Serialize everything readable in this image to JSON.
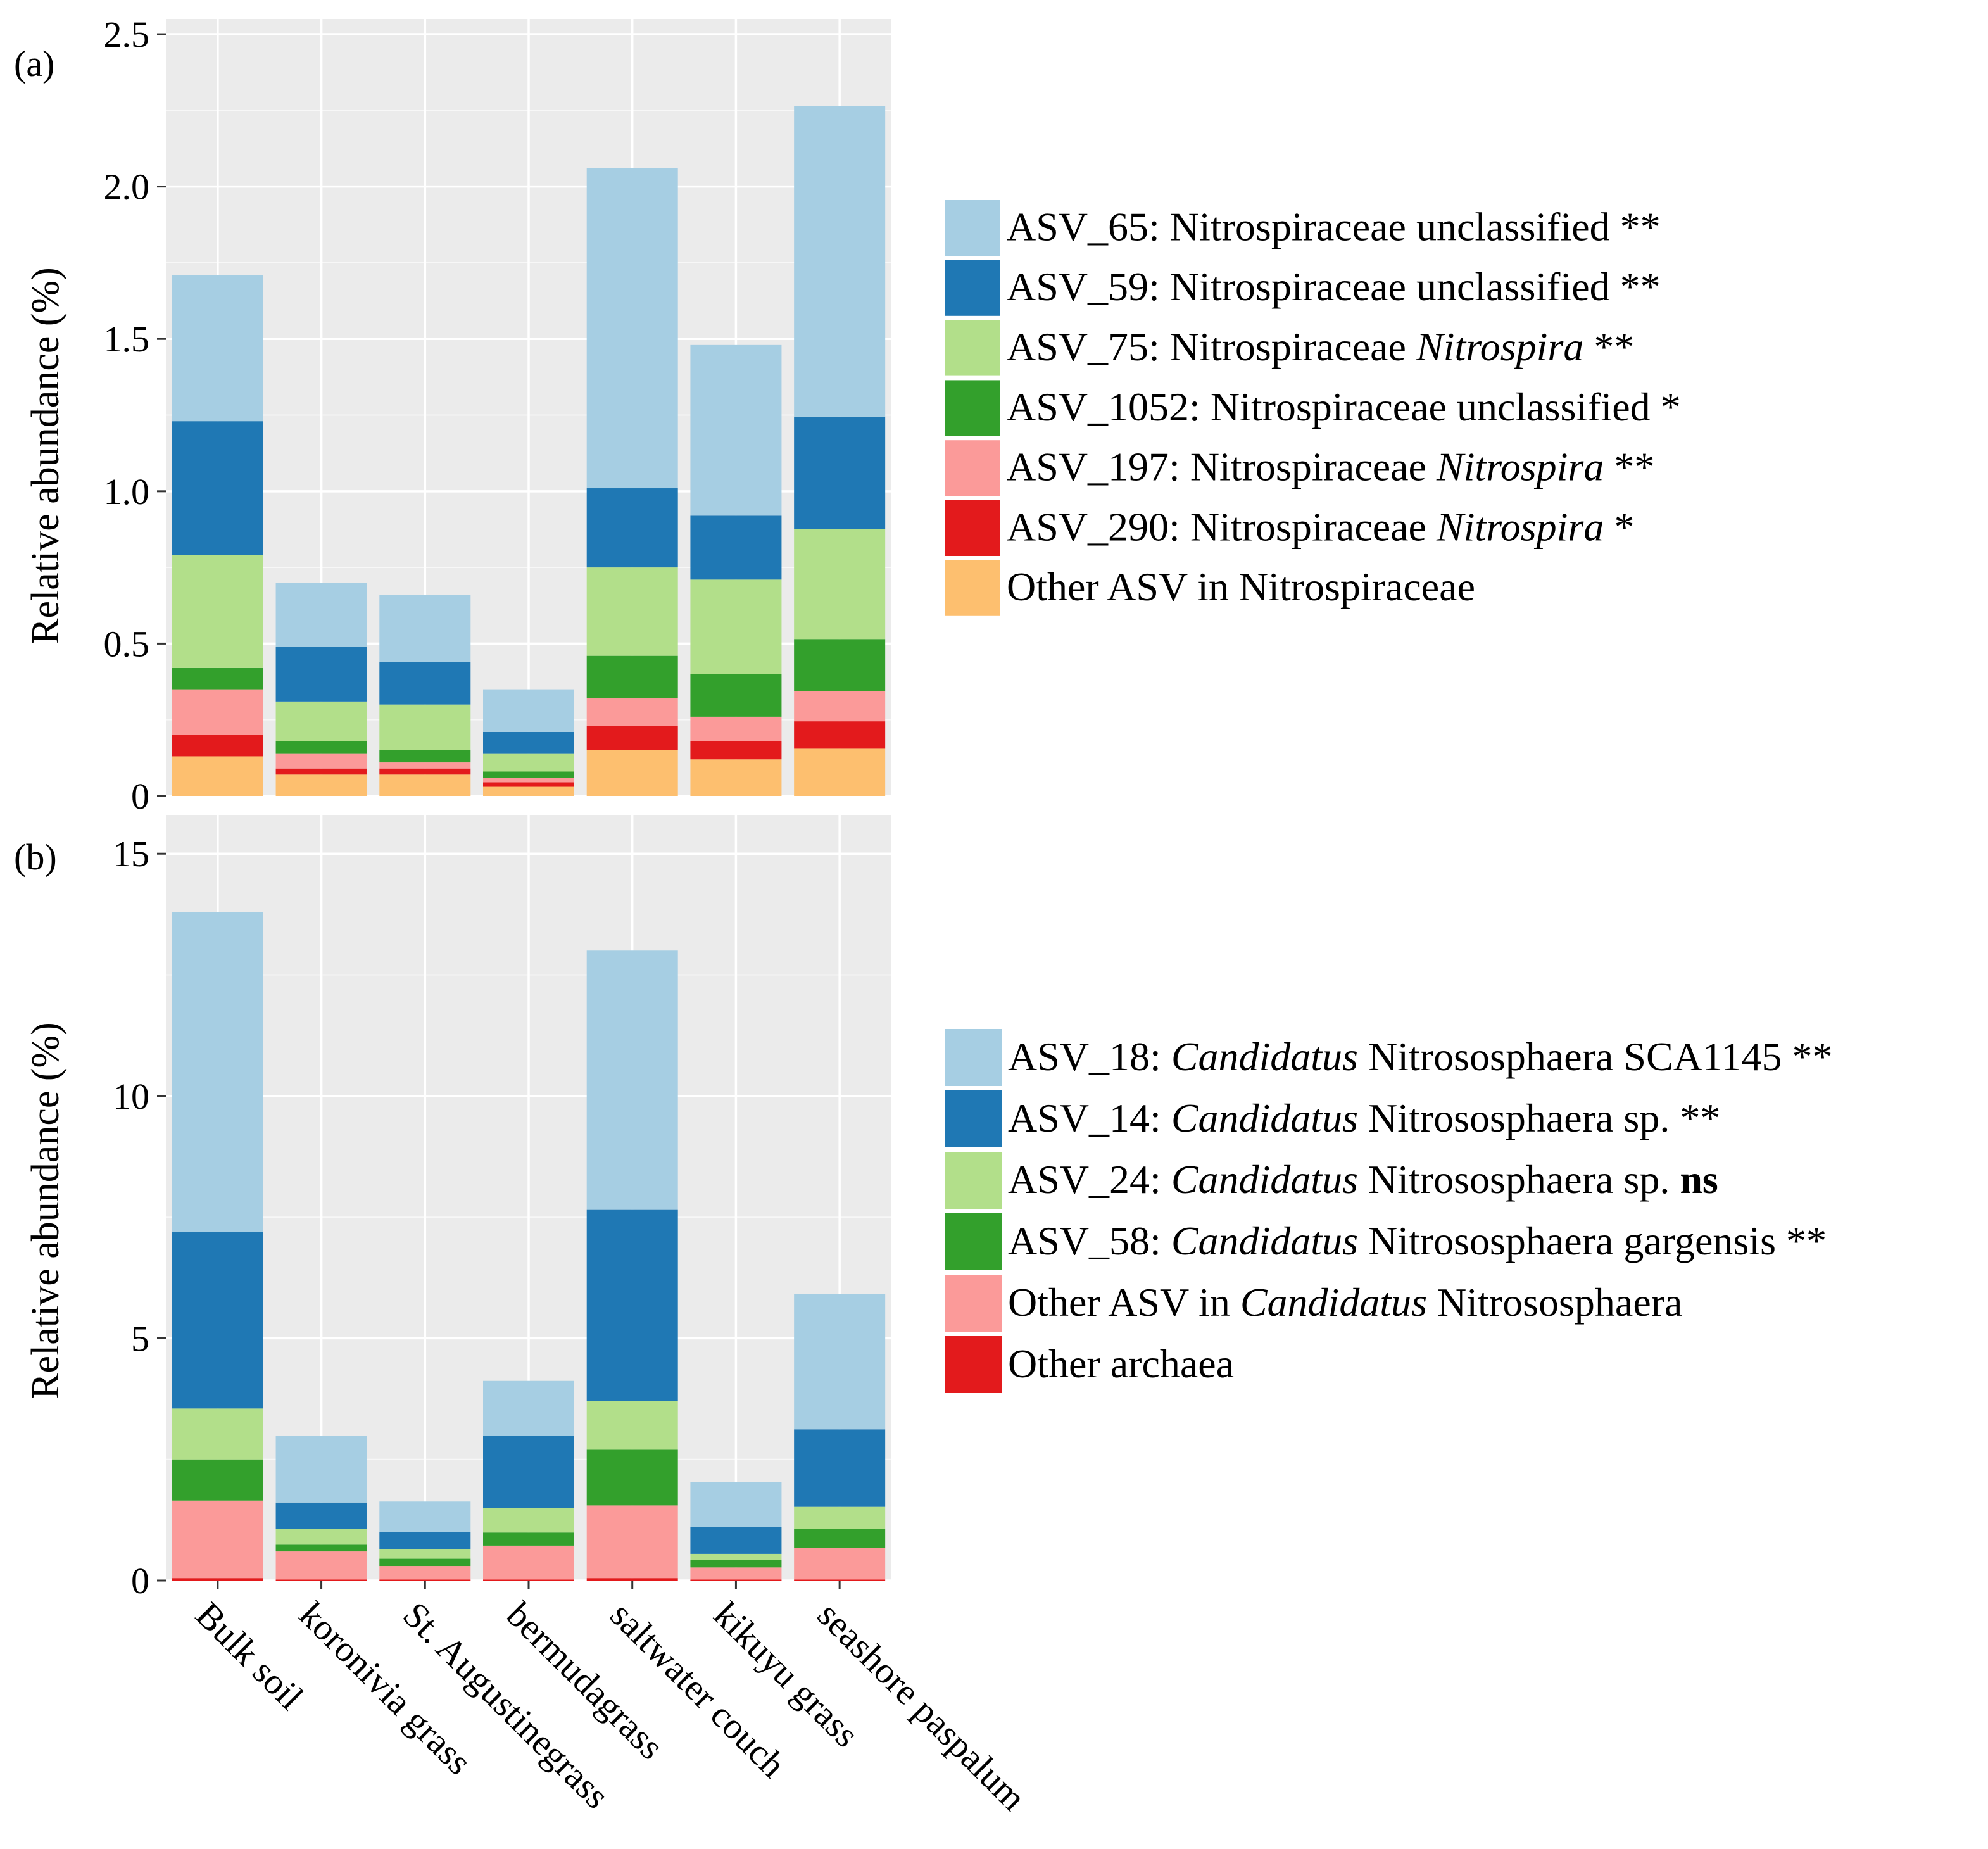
{
  "chart_data": [
    {
      "panel": "(a)",
      "type": "bar",
      "stacked": true,
      "ylabel": "Relative abundance (%)",
      "ylim": [
        0,
        2.55
      ],
      "yticks": [
        "0",
        "0.5",
        "1.0",
        "1.5",
        "2.0",
        "2.5"
      ],
      "ytick_values": [
        0,
        0.5,
        1.0,
        1.5,
        2.0,
        2.5
      ],
      "grid": true,
      "categories": [
        "Bulk soil",
        "koronivia grass",
        "St. Augustinegrass",
        "bermudagrass",
        "saltwater couch",
        "kikuyu grass",
        "seashore paspalum"
      ],
      "legend_position": "right",
      "series": [
        {
          "name": "Other ASV in Nitrospiraceae",
          "color": "#fdbf6f",
          "values": [
            0.13,
            0.07,
            0.07,
            0.03,
            0.15,
            0.12,
            0.155
          ]
        },
        {
          "name": "ASV_290: Nitrospiraceae Nitrospira *",
          "color": "#e31a1c",
          "values": [
            0.07,
            0.02,
            0.02,
            0.015,
            0.08,
            0.06,
            0.09
          ]
        },
        {
          "name": "ASV_197: Nitrospiraceae Nitrospira **",
          "color": "#fb9a99",
          "values": [
            0.15,
            0.05,
            0.02,
            0.015,
            0.09,
            0.08,
            0.1
          ]
        },
        {
          "name": "ASV_1052: Nitrospiraceae unclassified *",
          "color": "#33a02c",
          "values": [
            0.07,
            0.04,
            0.04,
            0.02,
            0.14,
            0.14,
            0.17
          ]
        },
        {
          "name": "ASV_75: Nitrospiraceae Nitrospira **",
          "color": "#b2df8a",
          "values": [
            0.37,
            0.13,
            0.15,
            0.06,
            0.29,
            0.31,
            0.36
          ]
        },
        {
          "name": "ASV_59: Nitrospiraceae unclassified **",
          "color": "#1f78b4",
          "values": [
            0.44,
            0.18,
            0.14,
            0.07,
            0.26,
            0.21,
            0.37
          ]
        },
        {
          "name": "ASV_65: Nitrospiraceae unclassified **",
          "color": "#a6cee3",
          "values": [
            0.48,
            0.21,
            0.22,
            0.14,
            1.05,
            0.56,
            1.02
          ]
        }
      ],
      "legend": [
        {
          "color": "#a6cee3",
          "parts": [
            {
              "t": "ASV_65: Nitrospiraceae unclassified **"
            }
          ]
        },
        {
          "color": "#1f78b4",
          "parts": [
            {
              "t": "ASV_59: Nitrospiraceae unclassified **"
            }
          ]
        },
        {
          "color": "#b2df8a",
          "parts": [
            {
              "t": "ASV_75: Nitrospiraceae "
            },
            {
              "t": "Nitrospira",
              "s": "ital"
            },
            {
              "t": " **"
            }
          ]
        },
        {
          "color": "#33a02c",
          "parts": [
            {
              "t": "ASV_1052: Nitrospiraceae unclassified *"
            }
          ]
        },
        {
          "color": "#fb9a99",
          "parts": [
            {
              "t": "ASV_197: Nitrospiraceae "
            },
            {
              "t": "Nitrospira",
              "s": "ital"
            },
            {
              "t": " **"
            }
          ]
        },
        {
          "color": "#e31a1c",
          "parts": [
            {
              "t": "ASV_290: Nitrospiraceae "
            },
            {
              "t": "Nitrospira",
              "s": "ital"
            },
            {
              "t": " *"
            }
          ]
        },
        {
          "color": "#fdbf6f",
          "parts": [
            {
              "t": "Other ASV in Nitrospiraceae"
            }
          ]
        }
      ]
    },
    {
      "panel": "(b)",
      "type": "bar",
      "stacked": true,
      "ylabel": "Relative abundance (%)",
      "ylim": [
        0,
        15.8
      ],
      "yticks": [
        "0",
        "5",
        "10",
        "15"
      ],
      "ytick_values": [
        0,
        5,
        10,
        15
      ],
      "grid": true,
      "categories": [
        "Bulk soil",
        "koronivia grass",
        "St. Augustinegrass",
        "bermudagrass",
        "saltwater couch",
        "kikuyu grass",
        "seashore paspalum"
      ],
      "legend_position": "right",
      "series": [
        {
          "name": "Other archaea",
          "color": "#e31a1c",
          "values": [
            0.05,
            0.02,
            0.02,
            0.02,
            0.05,
            0.02,
            0.02
          ]
        },
        {
          "name": "Other ASV in Candidatus Nitrososphaera",
          "color": "#fb9a99",
          "values": [
            1.6,
            0.58,
            0.28,
            0.7,
            1.5,
            0.25,
            0.65
          ]
        },
        {
          "name": "ASV_58: Candidatus Nitrososphaera gargensis **",
          "color": "#33a02c",
          "values": [
            0.85,
            0.14,
            0.15,
            0.27,
            1.15,
            0.15,
            0.4
          ]
        },
        {
          "name": "ASV_24: Candidatus Nitrososphaera sp. ns",
          "color": "#b2df8a",
          "values": [
            1.05,
            0.32,
            0.2,
            0.5,
            1.0,
            0.13,
            0.45
          ]
        },
        {
          "name": "ASV_14: Candidatus Nitrososphaera sp. **",
          "color": "#1f78b4",
          "values": [
            3.65,
            0.55,
            0.35,
            1.5,
            3.95,
            0.55,
            1.6
          ]
        },
        {
          "name": "ASV_18: Candidatus Nitrososphaera SCA1145 **",
          "color": "#a6cee3",
          "values": [
            6.6,
            1.37,
            0.63,
            1.13,
            5.35,
            0.93,
            2.8
          ]
        }
      ],
      "legend": [
        {
          "color": "#a6cee3",
          "parts": [
            {
              "t": "ASV_18: "
            },
            {
              "t": "Candidatus",
              "s": "ital"
            },
            {
              "t": " Nitrososphaera SCA1145 **"
            }
          ]
        },
        {
          "color": "#1f78b4",
          "parts": [
            {
              "t": "ASV_14: "
            },
            {
              "t": "Candidatus",
              "s": "ital"
            },
            {
              "t": " Nitrososphaera sp. **"
            }
          ]
        },
        {
          "color": "#b2df8a",
          "parts": [
            {
              "t": "ASV_24: "
            },
            {
              "t": "Candidatus",
              "s": "ital"
            },
            {
              "t": " Nitrososphaera sp. "
            },
            {
              "t": "ns",
              "s": "bold"
            }
          ]
        },
        {
          "color": "#33a02c",
          "parts": [
            {
              "t": "ASV_58: "
            },
            {
              "t": "Candidatus",
              "s": "ital"
            },
            {
              "t": " Nitrososphaera gargensis **"
            }
          ]
        },
        {
          "color": "#fb9a99",
          "parts": [
            {
              "t": "Other ASV in "
            },
            {
              "t": "Candidatus",
              "s": "ital"
            },
            {
              "t": " Nitrososphaera"
            }
          ]
        },
        {
          "color": "#e31a1c",
          "parts": [
            {
              "t": "Other archaea"
            }
          ]
        }
      ]
    }
  ]
}
